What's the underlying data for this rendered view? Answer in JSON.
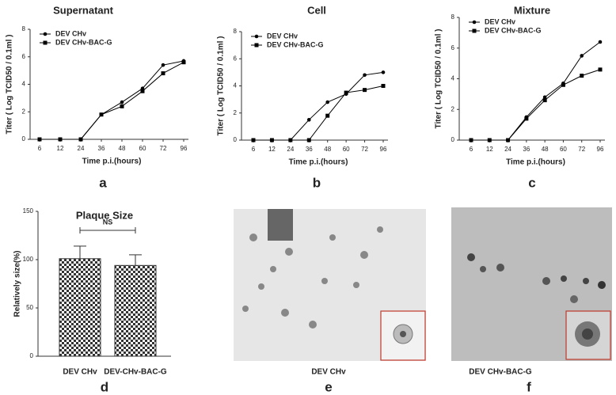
{
  "chart_data": [
    {
      "type": "line",
      "title": "Supernatant",
      "panel_label": "a",
      "x_label": "Time p.i.(hours)",
      "y_label": "Titer ( Log TCID50 / 0.1ml )",
      "categories": [
        "6",
        "12",
        "24",
        "36",
        "48",
        "60",
        "72",
        "96"
      ],
      "ylim": [
        0,
        8
      ],
      "yticks": [
        0,
        2,
        4,
        6,
        8
      ],
      "legend": "upper left",
      "series": [
        {
          "name": "DEV CHv",
          "color": "#000000",
          "marker": "circle",
          "values": [
            0,
            0,
            0,
            1.8,
            2.7,
            3.7,
            5.4,
            5.7
          ]
        },
        {
          "name": "DEV CHv-BAC-G",
          "color": "#000000",
          "marker": "square",
          "values": [
            0,
            0,
            0,
            1.8,
            2.4,
            3.5,
            4.8,
            5.6
          ]
        }
      ]
    },
    {
      "type": "line",
      "title": "Cell",
      "panel_label": "b",
      "x_label": "Time p.i.(hours)",
      "y_label": "Titer ( Log TCID50 / 0.1ml )",
      "categories": [
        "6",
        "12",
        "24",
        "36",
        "48",
        "60",
        "72",
        "96"
      ],
      "ylim": [
        0,
        8
      ],
      "yticks": [
        0,
        2,
        4,
        6,
        8
      ],
      "legend": "upper left",
      "series": [
        {
          "name": "DEV CHv",
          "color": "#000000",
          "marker": "circle",
          "values": [
            0,
            0,
            0,
            1.5,
            2.8,
            3.4,
            4.8,
            5.0
          ]
        },
        {
          "name": "DEV CHv-BAC-G",
          "color": "#000000",
          "marker": "square",
          "values": [
            0,
            0,
            0,
            0,
            1.8,
            3.5,
            3.7,
            4.0
          ]
        }
      ]
    },
    {
      "type": "line",
      "title": "Mixture",
      "panel_label": "c",
      "x_label": "Time p.i.(hours)",
      "y_label": "Titer ( Log TCID50 / 0.1ml )",
      "categories": [
        "6",
        "12",
        "24",
        "36",
        "48",
        "60",
        "72",
        "96"
      ],
      "ylim": [
        0,
        8
      ],
      "yticks": [
        0,
        2,
        4,
        6,
        8
      ],
      "legend": "upper left",
      "series": [
        {
          "name": "DEV CHv",
          "color": "#000000",
          "marker": "circle",
          "values": [
            0,
            0,
            0,
            1.5,
            2.8,
            3.7,
            5.5,
            6.4
          ]
        },
        {
          "name": "DEV CHv-BAC-G",
          "color": "#000000",
          "marker": "square",
          "values": [
            0,
            0,
            0,
            1.4,
            2.6,
            3.6,
            4.2,
            4.6
          ]
        }
      ]
    },
    {
      "type": "bar",
      "title": "Plaque Size",
      "panel_label": "d",
      "y_label": "Relatively size(%)",
      "annotation": "NS",
      "categories": [
        "DEV CHv",
        "DEV-CHv-BAC-G"
      ],
      "values": [
        101,
        94
      ],
      "errors": [
        13,
        11
      ],
      "ylim": [
        0,
        150
      ],
      "yticks": [
        0,
        50,
        100,
        150
      ]
    }
  ],
  "images": [
    {
      "caption": "DEV CHv",
      "panel_label": "e"
    },
    {
      "caption": "DEV CHv-BAC-G",
      "panel_label": "f"
    }
  ]
}
